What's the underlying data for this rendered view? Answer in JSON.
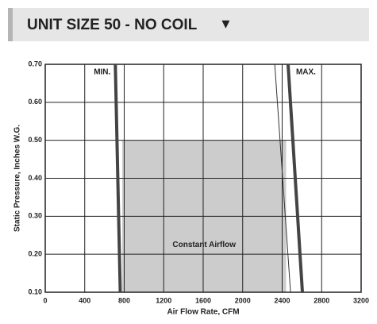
{
  "header": {
    "title": "UNIT SIZE 50 - NO COIL",
    "icon": "▼"
  },
  "chart_data": {
    "type": "line",
    "xlabel": "Air Flow Rate, CFM",
    "ylabel": "Static Pressure, Inches W.G.",
    "xlim": [
      0,
      3200
    ],
    "xticks": [
      0,
      400,
      800,
      1200,
      1600,
      2000,
      2400,
      2800,
      3200
    ],
    "ylim": [
      0.1,
      0.7
    ],
    "yticks": [
      {
        "value": 0.1,
        "label": "0.10"
      },
      {
        "value": 0.2,
        "label": "0.20"
      },
      {
        "value": 0.3,
        "label": "0.30"
      },
      {
        "value": 0.4,
        "label": "0.40"
      },
      {
        "value": 0.5,
        "label": "0.50"
      },
      {
        "value": 0.6,
        "label": "0.60"
      },
      {
        "value": 0.7,
        "label": "0.70"
      }
    ],
    "grid": true,
    "series": [
      {
        "name": "MIN.",
        "color": "#444444",
        "line_width": 4,
        "x": [
          710,
          760
        ],
        "values": [
          0.7,
          0.1
        ]
      },
      {
        "name": "MAX.",
        "color": "#444444",
        "line_width": 4,
        "x": [
          2460,
          2605
        ],
        "values": [
          0.7,
          0.1
        ]
      },
      {
        "color": "#333333",
        "line_width": 1,
        "x": [
          2325,
          2485
        ],
        "values": [
          0.7,
          0.1
        ]
      }
    ],
    "shaded_region": {
      "label": "Constant Airflow",
      "color": "#cccccc",
      "x": [
        780,
        2440
      ],
      "y": [
        0.1,
        0.5
      ]
    }
  }
}
